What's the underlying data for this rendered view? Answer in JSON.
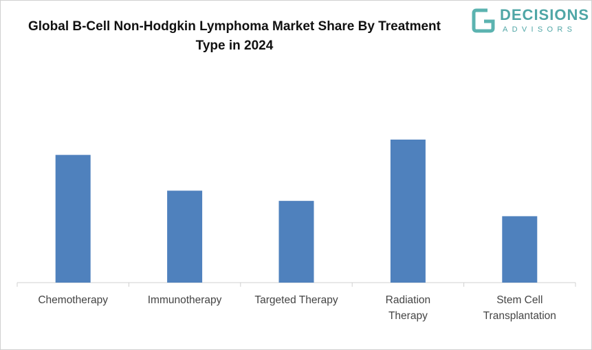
{
  "logo": {
    "name": "DECISIONS",
    "tagline": "ADVISORS"
  },
  "chart_data": {
    "type": "bar",
    "title": "Global B-Cell Non-Hodgkin Lymphoma Market Share By Treatment Type in 2024",
    "categories": [
      "Chemotherapy",
      "Immunotherapy",
      "Targeted Therapy",
      "Radiation Therapy",
      "Stem Cell Transplantation"
    ],
    "values": [
      25,
      18,
      16,
      28,
      13
    ],
    "color": "#4f81bd",
    "ylim": [
      0,
      35
    ]
  }
}
